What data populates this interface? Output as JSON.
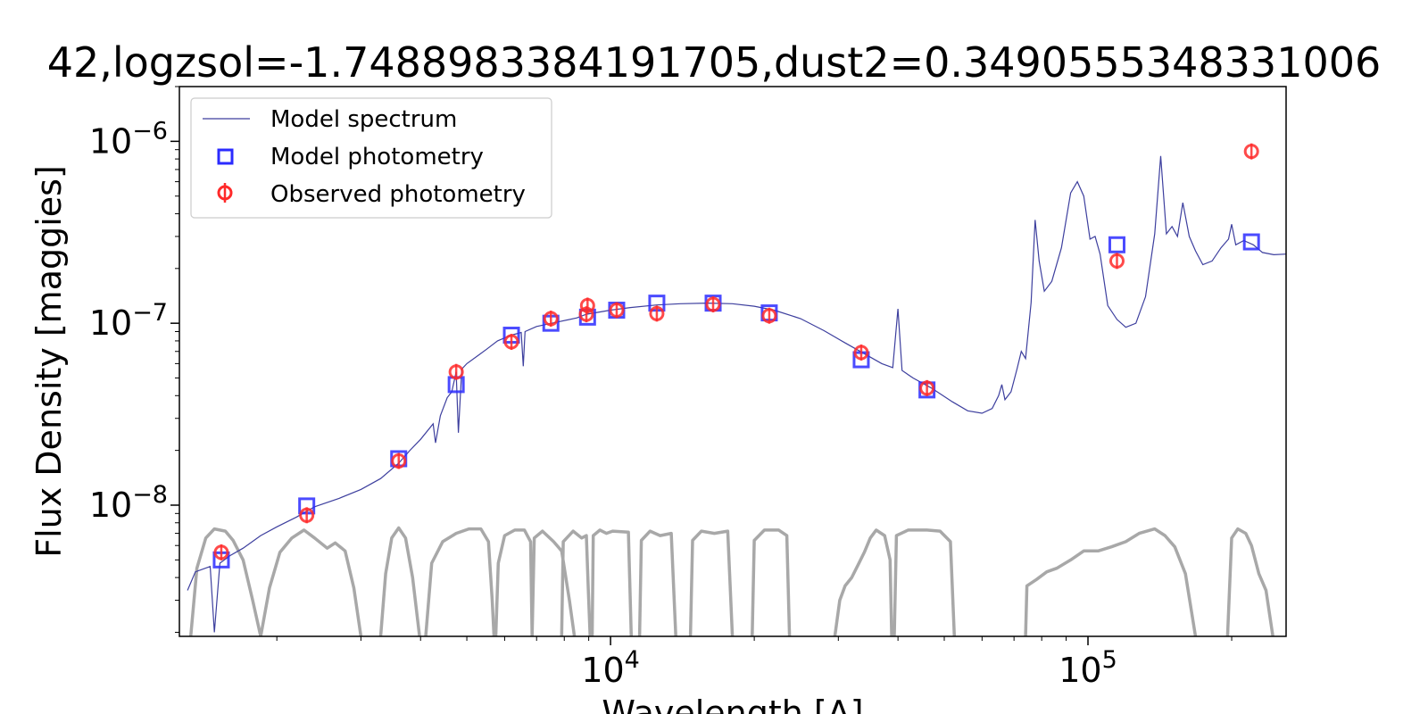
{
  "chart_data": {
    "type": "scatter",
    "title": "42,logzsol=-1.7488983384191705,dust2=0.3490555348331006",
    "xlabel": "Wavelength [A]",
    "ylabel": "Flux Density [maggies]",
    "xscale": "log",
    "yscale": "log",
    "xlim": [
      1250,
      260000
    ],
    "ylim": [
      1.9e-09,
      2e-06
    ],
    "grid": false,
    "legend_position": "upper left",
    "x_tick_labels": [
      {
        "base": "10",
        "exp": "4",
        "value": 10000
      },
      {
        "base": "10",
        "exp": "5",
        "value": 100000
      }
    ],
    "y_tick_labels": [
      {
        "base": "10",
        "exp": "−6",
        "value": 1e-06
      },
      {
        "base": "10",
        "exp": "−7",
        "value": 1e-07
      },
      {
        "base": "10",
        "exp": "−8",
        "value": 1e-08
      }
    ],
    "colors": {
      "model_spectrum": "#3d3f9e",
      "model_photometry": "#2b2bff",
      "observed_photometry": "#ff2a2a",
      "filters": "#a8a8a8"
    },
    "series": [
      {
        "name": "Model spectrum",
        "kind": "line",
        "points": [
          [
            1300,
            3.4e-09
          ],
          [
            1350,
            4.3e-09
          ],
          [
            1450,
            4.6e-09
          ],
          [
            1480,
            2e-09
          ],
          [
            1520,
            4.8e-09
          ],
          [
            1600,
            5.3e-09
          ],
          [
            1700,
            5.8e-09
          ],
          [
            1850,
            6.8e-09
          ],
          [
            2000,
            7.6e-09
          ],
          [
            2200,
            8.6e-09
          ],
          [
            2400,
            9.8e-09
          ],
          [
            2700,
            1.09e-08
          ],
          [
            3000,
            1.22e-08
          ],
          [
            3300,
            1.4e-08
          ],
          [
            3600,
            1.7e-08
          ],
          [
            3800,
            2e-08
          ],
          [
            4000,
            2.3e-08
          ],
          [
            4250,
            2.8e-08
          ],
          [
            4300,
            2.2e-08
          ],
          [
            4400,
            3.1e-08
          ],
          [
            4550,
            3.9e-08
          ],
          [
            4650,
            4.2e-08
          ],
          [
            4750,
            5.4e-08
          ],
          [
            4800,
            2.5e-08
          ],
          [
            4880,
            5.6e-08
          ],
          [
            5000,
            6e-08
          ],
          [
            5300,
            6.7e-08
          ],
          [
            5500,
            7.2e-08
          ],
          [
            5800,
            8e-08
          ],
          [
            6200,
            8.6e-08
          ],
          [
            6500,
            8.9e-08
          ],
          [
            6563,
            5.8e-08
          ],
          [
            6620,
            9e-08
          ],
          [
            7000,
            9.6e-08
          ],
          [
            7800,
            1.02e-07
          ],
          [
            8500,
            1.07e-07
          ],
          [
            8900,
            1.12e-07
          ],
          [
            10000,
            1.18e-07
          ],
          [
            11000,
            1.22e-07
          ],
          [
            12500,
            1.26e-07
          ],
          [
            14000,
            1.28e-07
          ],
          [
            16000,
            1.29e-07
          ],
          [
            18000,
            1.28e-07
          ],
          [
            20000,
            1.24e-07
          ],
          [
            22000,
            1.18e-07
          ],
          [
            25000,
            1.06e-07
          ],
          [
            28000,
            9.1e-08
          ],
          [
            31000,
            7.8e-08
          ],
          [
            34000,
            6.8e-08
          ],
          [
            37000,
            6e-08
          ],
          [
            39000,
            5.7e-08
          ],
          [
            40000,
            1.2e-07
          ],
          [
            40800,
            5.5e-08
          ],
          [
            43000,
            5e-08
          ],
          [
            47000,
            4.4e-08
          ],
          [
            52000,
            3.7e-08
          ],
          [
            56000,
            3.3e-08
          ],
          [
            60000,
            3.2e-08
          ],
          [
            63000,
            3.4e-08
          ],
          [
            65000,
            4e-08
          ],
          [
            66000,
            4.6e-08
          ],
          [
            67000,
            3.8e-08
          ],
          [
            69000,
            4.2e-08
          ],
          [
            71000,
            5.6e-08
          ],
          [
            72500,
            7e-08
          ],
          [
            74000,
            6.4e-08
          ],
          [
            76000,
            1.3e-07
          ],
          [
            77500,
            3.7e-07
          ],
          [
            79000,
            2.2e-07
          ],
          [
            81000,
            1.5e-07
          ],
          [
            84000,
            1.7e-07
          ],
          [
            88000,
            2.6e-07
          ],
          [
            92000,
            5.2e-07
          ],
          [
            95000,
            6e-07
          ],
          [
            98000,
            5e-07
          ],
          [
            101000,
            2.9e-07
          ],
          [
            103500,
            3e-07
          ],
          [
            106000,
            2.4e-07
          ],
          [
            110000,
            1.25e-07
          ],
          [
            115000,
            1.05e-07
          ],
          [
            120000,
            9.5e-08
          ],
          [
            126000,
            1e-07
          ],
          [
            132000,
            1.4e-07
          ],
          [
            138000,
            3.1e-07
          ],
          [
            142000,
            8.3e-07
          ],
          [
            146000,
            3.1e-07
          ],
          [
            150000,
            3.4e-07
          ],
          [
            154000,
            3e-07
          ],
          [
            158000,
            4.6e-07
          ],
          [
            163000,
            3e-07
          ],
          [
            168000,
            2.5e-07
          ],
          [
            174000,
            2.1e-07
          ],
          [
            182000,
            2.2e-07
          ],
          [
            190000,
            2.6e-07
          ],
          [
            197000,
            2.9e-07
          ],
          [
            200000,
            3.5e-07
          ],
          [
            204000,
            2.7e-07
          ],
          [
            212000,
            2.85e-07
          ],
          [
            222000,
            2.7e-07
          ],
          [
            232000,
            2.45e-07
          ],
          [
            245000,
            2.38e-07
          ],
          [
            260000,
            2.4e-07
          ]
        ]
      },
      {
        "name": "Model photometry",
        "kind": "marker-square",
        "points": [
          [
            1530,
            5e-09
          ],
          [
            2310,
            9.9e-09
          ],
          [
            3600,
            1.8e-08
          ],
          [
            4750,
            4.6e-08
          ],
          [
            6200,
            8.6e-08
          ],
          [
            7500,
            1e-07
          ],
          [
            8950,
            1.08e-07
          ],
          [
            10300,
            1.18e-07
          ],
          [
            12500,
            1.29e-07
          ],
          [
            16400,
            1.29e-07
          ],
          [
            21500,
            1.14e-07
          ],
          [
            33500,
            6.3e-08
          ],
          [
            46000,
            4.3e-08
          ],
          [
            115000,
            2.7e-07
          ],
          [
            220000,
            2.8e-07
          ]
        ]
      },
      {
        "name": "Observed photometry",
        "kind": "marker-errorbar",
        "points": [
          [
            1530,
            5.5e-09
          ],
          [
            2310,
            8.8e-09
          ],
          [
            3600,
            1.75e-08
          ],
          [
            4750,
            5.4e-08
          ],
          [
            6200,
            7.9e-08
          ],
          [
            7500,
            1.06e-07
          ],
          [
            8950,
            1.25e-07
          ],
          [
            8900,
            1.12e-07
          ],
          [
            10300,
            1.18e-07
          ],
          [
            12500,
            1.13e-07
          ],
          [
            16400,
            1.27e-07
          ],
          [
            21500,
            1.1e-07
          ],
          [
            33500,
            6.9e-08
          ],
          [
            46000,
            4.4e-08
          ],
          [
            115000,
            2.2e-07
          ],
          [
            220000,
            8.8e-07
          ]
        ]
      }
    ],
    "filter_curves": [
      {
        "points": [
          [
            1320,
            1.9e-09
          ],
          [
            1360,
            4.5e-09
          ],
          [
            1420,
            6.6e-09
          ],
          [
            1480,
            7.4e-09
          ],
          [
            1560,
            7.2e-09
          ],
          [
            1620,
            6.4e-09
          ],
          [
            1700,
            5e-09
          ],
          [
            1780,
            3e-09
          ],
          [
            1850,
            1.9e-09
          ]
        ]
      },
      {
        "points": [
          [
            1850,
            1.9e-09
          ],
          [
            1930,
            3.5e-09
          ],
          [
            2030,
            5.5e-09
          ],
          [
            2150,
            6.6e-09
          ],
          [
            2280,
            7.3e-09
          ],
          [
            2400,
            6.6e-09
          ],
          [
            2550,
            5.8e-09
          ],
          [
            2650,
            6.2e-09
          ],
          [
            2780,
            5.6e-09
          ],
          [
            2900,
            3.5e-09
          ],
          [
            3000,
            1.9e-09
          ]
        ]
      },
      {
        "points": [
          [
            3300,
            1.9e-09
          ],
          [
            3380,
            4.2e-09
          ],
          [
            3480,
            6.6e-09
          ],
          [
            3600,
            7.5e-09
          ],
          [
            3720,
            6.6e-09
          ],
          [
            3850,
            4e-09
          ],
          [
            3980,
            1.9e-09
          ]
        ]
      },
      {
        "points": [
          [
            4100,
            1.9e-09
          ],
          [
            4220,
            4.8e-09
          ],
          [
            4450,
            6.3e-09
          ],
          [
            4750,
            7e-09
          ],
          [
            5050,
            7.4e-09
          ],
          [
            5350,
            7.4e-09
          ],
          [
            5550,
            6.3e-09
          ],
          [
            5650,
            3e-09
          ],
          [
            5700,
            1.9e-09
          ]
        ]
      },
      {
        "points": [
          [
            5750,
            1.9e-09
          ],
          [
            5820,
            4.8e-09
          ],
          [
            6000,
            6.8e-09
          ],
          [
            6300,
            7.3e-09
          ],
          [
            6600,
            7.3e-09
          ],
          [
            6800,
            6.3e-09
          ],
          [
            6850,
            1.9e-09
          ]
        ]
      },
      {
        "points": [
          [
            6850,
            1.9e-09
          ],
          [
            6920,
            6.6e-09
          ],
          [
            7200,
            7.2e-09
          ],
          [
            7600,
            6.3e-09
          ],
          [
            7900,
            5.6e-09
          ],
          [
            8200,
            3e-09
          ],
          [
            8400,
            1.9e-09
          ]
        ]
      },
      {
        "points": [
          [
            7900,
            1.9e-09
          ],
          [
            7960,
            6.3e-09
          ],
          [
            8350,
            7.2e-09
          ],
          [
            8700,
            6.6e-09
          ],
          [
            8900,
            6.8e-09
          ],
          [
            8980,
            3.5e-09
          ],
          [
            9060,
            1.9e-09
          ]
        ]
      },
      {
        "points": [
          [
            9150,
            1.9e-09
          ],
          [
            9200,
            6.8e-09
          ],
          [
            9500,
            7.3e-09
          ],
          [
            9800,
            7e-09
          ],
          [
            10100,
            7.2e-09
          ],
          [
            10900,
            7.1e-09
          ],
          [
            11050,
            1.9e-09
          ]
        ]
      },
      {
        "points": [
          [
            11500,
            1.9e-09
          ],
          [
            11600,
            6.4e-09
          ],
          [
            12100,
            7.2e-09
          ],
          [
            12700,
            6.8e-09
          ],
          [
            13400,
            7e-09
          ],
          [
            13700,
            1.9e-09
          ]
        ]
      },
      {
        "points": [
          [
            14700,
            1.9e-09
          ],
          [
            14850,
            6.4e-09
          ],
          [
            15500,
            7.2e-09
          ],
          [
            16500,
            7e-09
          ],
          [
            17600,
            7.2e-09
          ],
          [
            18000,
            1.9e-09
          ]
        ]
      },
      {
        "points": [
          [
            19800,
            1.9e-09
          ],
          [
            20000,
            6.4e-09
          ],
          [
            21000,
            7.3e-09
          ],
          [
            22500,
            7.3e-09
          ],
          [
            23400,
            6.8e-09
          ],
          [
            23700,
            1.9e-09
          ]
        ]
      },
      {
        "points": [
          [
            29500,
            1.9e-09
          ],
          [
            30200,
            3e-09
          ],
          [
            31000,
            3.6e-09
          ],
          [
            32000,
            4e-09
          ],
          [
            33000,
            4.7e-09
          ],
          [
            34000,
            5.5e-09
          ],
          [
            35000,
            6.6e-09
          ],
          [
            36000,
            7.3e-09
          ],
          [
            37500,
            6.8e-09
          ],
          [
            38500,
            5e-09
          ],
          [
            38800,
            1.9e-09
          ]
        ]
      },
      {
        "points": [
          [
            39300,
            1.9e-09
          ],
          [
            39700,
            6.8e-09
          ],
          [
            42000,
            7.3e-09
          ],
          [
            46000,
            7.3e-09
          ],
          [
            49000,
            7.2e-09
          ],
          [
            51500,
            6.3e-09
          ],
          [
            52500,
            1.9e-09
          ]
        ]
      },
      {
        "points": [
          [
            74000,
            1.9e-09
          ],
          [
            74500,
            3.6e-09
          ],
          [
            78000,
            3.9e-09
          ],
          [
            82000,
            4.3e-09
          ],
          [
            86000,
            4.5e-09
          ],
          [
            92000,
            5e-09
          ],
          [
            98000,
            5.6e-09
          ],
          [
            105000,
            5.6e-09
          ],
          [
            112000,
            5.9e-09
          ],
          [
            120000,
            6.3e-09
          ],
          [
            128000,
            7e-09
          ],
          [
            138000,
            7.4e-09
          ],
          [
            145000,
            6.8e-09
          ],
          [
            152000,
            5.9e-09
          ],
          [
            160000,
            4.2e-09
          ],
          [
            168000,
            1.9e-09
          ]
        ]
      },
      {
        "points": [
          [
            196000,
            1.9e-09
          ],
          [
            200000,
            6.6e-09
          ],
          [
            206000,
            7.4e-09
          ],
          [
            214000,
            7e-09
          ],
          [
            220000,
            6e-09
          ],
          [
            228000,
            4.2e-09
          ],
          [
            236000,
            3.4e-09
          ],
          [
            244000,
            1.9e-09
          ]
        ]
      }
    ]
  }
}
